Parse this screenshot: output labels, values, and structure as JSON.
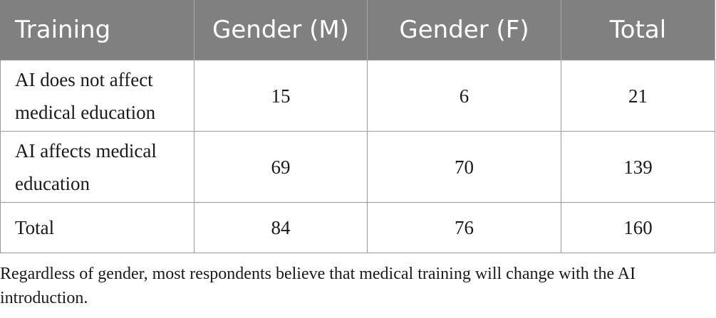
{
  "table": {
    "headers": [
      "Training",
      "Gender (M)",
      "Gender (F)",
      "Total"
    ],
    "rows": [
      {
        "label": "AI does not affect medical education",
        "male": "15",
        "female": "6",
        "total": "21"
      },
      {
        "label": "AI affects medical education",
        "male": "69",
        "female": "70",
        "total": "139"
      },
      {
        "label": "Total",
        "male": "84",
        "female": "76",
        "total": "160"
      }
    ],
    "header_bg_color": "#808080",
    "header_text_color": "#ffffff"
  },
  "caption": "Regardless of gender, most respondents believe that medical training will change with the AI introduction."
}
